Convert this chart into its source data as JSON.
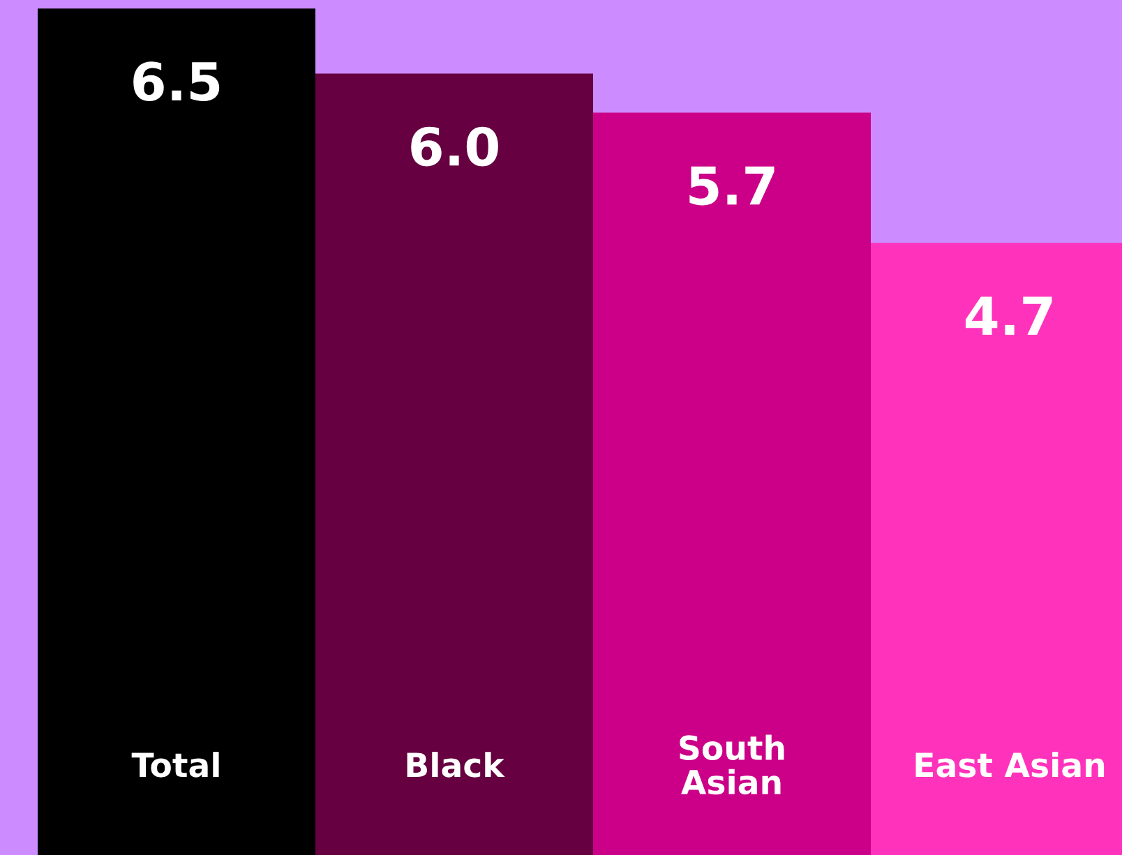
{
  "chart_data": {
    "type": "bar",
    "categories": [
      "Total",
      "Black",
      "South\nAsian",
      "East Asian"
    ],
    "values": [
      6.5,
      6.0,
      5.7,
      4.7
    ],
    "value_labels": [
      "6.5",
      "6.0",
      "5.7",
      "4.7"
    ],
    "colors": [
      "#000000",
      "#660040",
      "#cc0088",
      "#ff33bb"
    ]
  }
}
